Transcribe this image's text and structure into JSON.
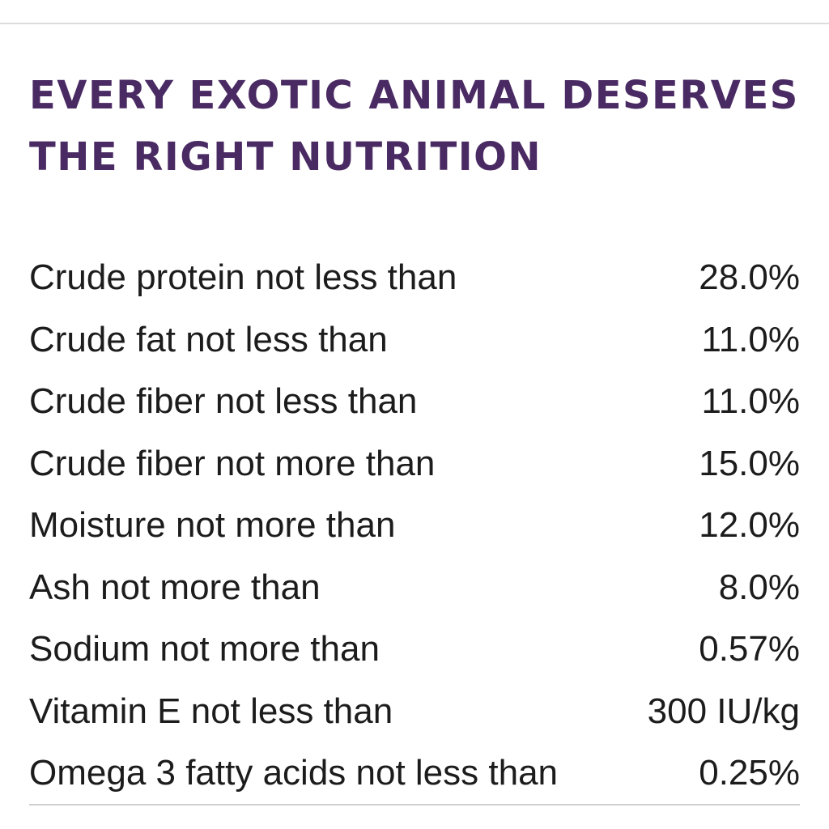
{
  "heading": {
    "line1": "EVERY EXOTIC ANIMAL DESERVES",
    "line2": "THE RIGHT NUTRITION"
  },
  "facts": [
    {
      "label": "Crude protein not less than",
      "value": "28.0%"
    },
    {
      "label": "Crude fat not less than",
      "value": "11.0%"
    },
    {
      "label": "Crude fiber not less than",
      "value": "11.0%"
    },
    {
      "label": "Crude fiber not more than",
      "value": "15.0%"
    },
    {
      "label": "Moisture not more than",
      "value": "12.0%"
    },
    {
      "label": "Ash not more than",
      "value": "8.0%"
    },
    {
      "label": "Sodium not more than",
      "value": "0.57%"
    },
    {
      "label": "Vitamin E not less than",
      "value": "300 IU/kg"
    },
    {
      "label": "Omega 3 fatty acids not less than",
      "value": "0.25%"
    }
  ],
  "colors": {
    "heading": "#4a2a63",
    "text": "#1c1c1c",
    "divider": "#dcdcdc"
  }
}
